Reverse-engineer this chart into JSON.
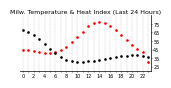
{
  "title": "Milw. Temperature & Heat Index (Last 24 Hours)",
  "background_color": "#ffffff",
  "grid_color": "#888888",
  "ylim": [
    20,
    85
  ],
  "xlim": [
    -0.5,
    23.5
  ],
  "yticks": [
    25,
    35,
    45,
    55,
    65,
    75
  ],
  "ytick_labels": [
    "25",
    "35",
    "45",
    "55",
    "65",
    "75"
  ],
  "time_hours": [
    0,
    1,
    2,
    3,
    4,
    5,
    6,
    7,
    8,
    9,
    10,
    11,
    12,
    13,
    14,
    15,
    16,
    17,
    18,
    19,
    20,
    21,
    22,
    23
  ],
  "xtick_labels": [
    "0",
    "",
    "2",
    "",
    "4",
    "",
    "6",
    "",
    "8",
    "",
    "10",
    "",
    "12",
    "",
    "14",
    "",
    "16",
    "",
    "18",
    "",
    "20",
    "",
    "22",
    ""
  ],
  "temp_values": [
    68,
    65,
    62,
    57,
    52,
    46,
    41,
    36,
    33,
    31,
    30,
    30,
    31,
    32,
    33,
    34,
    35,
    36,
    37,
    37,
    38,
    38,
    37,
    36
  ],
  "heat_index_values": [
    45,
    44,
    43,
    42,
    41,
    41,
    42,
    44,
    48,
    54,
    60,
    66,
    72,
    76,
    77,
    76,
    73,
    68,
    62,
    56,
    50,
    46,
    42,
    30
  ],
  "temp_color": "#000000",
  "heat_color": "#ff0000",
  "title_fontsize": 4.5,
  "tick_fontsize": 3.5,
  "marker_size": 1.8
}
